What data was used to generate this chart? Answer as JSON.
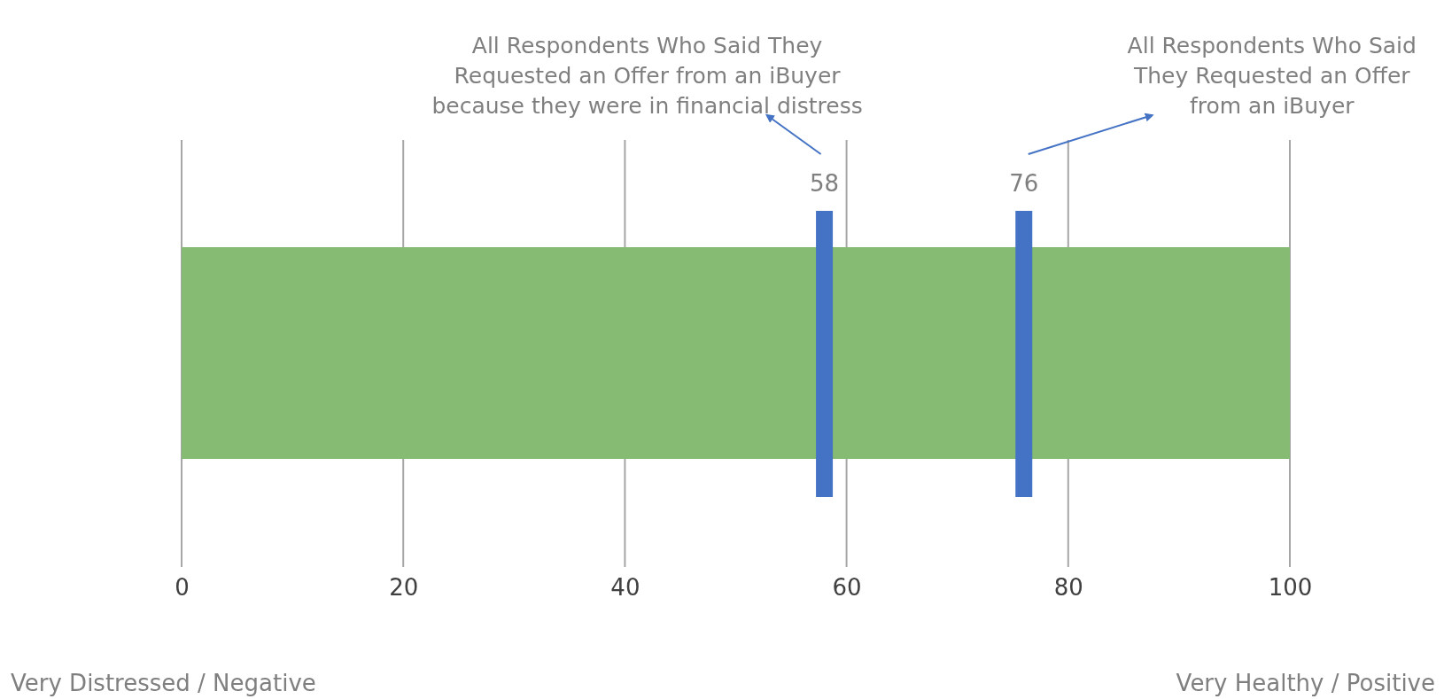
{
  "chart_data": {
    "type": "bar",
    "orientation": "horizontal",
    "categories": [
      null
    ],
    "values": [
      100
    ],
    "color": "#86bb74",
    "xlim": [
      0,
      100
    ],
    "xticks": [
      0,
      20,
      40,
      60,
      80,
      100
    ],
    "grid": "x",
    "ref_lines": [
      {
        "axis": "x",
        "value": 58,
        "label": "58",
        "color": "#4472c4"
      },
      {
        "axis": "x",
        "value": 76,
        "label": "76",
        "color": "#4472c4"
      }
    ],
    "annotations": [
      "All Respondents Who Said They Requested an Offer from an iBuyer because they were in financial distress",
      "All Respondents Who Said They Requested an Offer from an iBuyer",
      "Very Distressed / Negative",
      "Very Healthy / Positive"
    ]
  }
}
